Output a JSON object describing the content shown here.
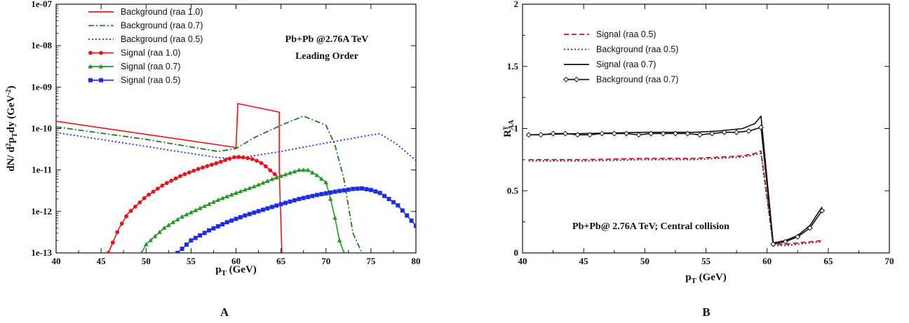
{
  "chart_data": [
    {
      "panel": "A",
      "type": "line",
      "xlabel": "p_T (GeV)",
      "ylabel": "dN/ d²p_T dy (GeV⁻²)",
      "xlim": [
        40,
        80
      ],
      "ylim": [
        1e-13,
        1e-07
      ],
      "yscale": "log",
      "xticks": [
        40,
        45,
        50,
        55,
        60,
        65,
        70,
        75,
        80
      ],
      "yticks": [
        1e-13,
        1e-12,
        1e-11,
        1e-10,
        1e-09,
        1e-08,
        1e-07
      ],
      "ytick_labels": [
        "1e-13",
        "1e-12",
        "1e-11",
        "1e-10",
        "1e-09",
        "1e-08",
        "1e-07"
      ],
      "annotation": [
        "Pb+Pb @2.76A TeV",
        "Leading Order"
      ],
      "legend_position": "top-left",
      "grid": false,
      "series": [
        {
          "name": "Background (raa 1.0)",
          "color": "#e8141c",
          "style": "solid",
          "marker": "none",
          "x": [
            40,
            60,
            60,
            60.2,
            64.8,
            64.8,
            65.1
          ],
          "y": [
            1.5e-10,
            3.5e-11,
            3.5e-11,
            4e-10,
            2.5e-10,
            1e-11,
            1e-13
          ]
        },
        {
          "name": "Background (raa 0.7)",
          "color": "#1f7a1f",
          "style": "dashdot",
          "marker": "none",
          "x": [
            40,
            50,
            55,
            58,
            60,
            62,
            65,
            67.5,
            70,
            71,
            72,
            73,
            74
          ],
          "y": [
            1.1e-10,
            5.5e-11,
            3.6e-11,
            2.8e-11,
            3.3e-11,
            6e-11,
            1.2e-10,
            2e-10,
            1.2e-10,
            4e-11,
            6e-12,
            3e-13,
            1e-13
          ]
        },
        {
          "name": "Background (raa 0.5)",
          "color": "#1c2de0",
          "style": "dotted",
          "marker": "none",
          "x": [
            40,
            50,
            55,
            58,
            60,
            65,
            70,
            75,
            76,
            78,
            80
          ],
          "y": [
            8e-11,
            3.7e-11,
            2.5e-11,
            2e-11,
            1.9e-11,
            2.8e-11,
            4.5e-11,
            7e-11,
            7.5e-11,
            4e-11,
            1.7e-11
          ]
        },
        {
          "name": "Signal (raa 1.0)",
          "color": "#e8141c",
          "style": "solid",
          "marker": "circle",
          "x": [
            45.8,
            47,
            48,
            50,
            52,
            54,
            56,
            58,
            59,
            60,
            61,
            62,
            63,
            64,
            64.6
          ],
          "y": [
            1e-13,
            4e-13,
            9e-13,
            2.3e-12,
            4.5e-12,
            7.5e-12,
            1.1e-11,
            1.5e-11,
            1.8e-11,
            2.1e-11,
            2e-11,
            1.8e-11,
            1.4e-11,
            9e-12,
            7e-12
          ]
        },
        {
          "name": "Signal (raa 0.7)",
          "color": "#1f9a1f",
          "style": "solid",
          "marker": "triangle",
          "x": [
            49.5,
            50,
            52,
            54,
            56,
            58,
            60,
            62,
            64,
            66,
            67,
            68,
            69,
            70,
            70.5,
            71,
            71.5,
            72
          ],
          "y": [
            1e-13,
            1.6e-13,
            4e-13,
            7.5e-13,
            1.2e-12,
            1.9e-12,
            2.8e-12,
            4e-12,
            6e-12,
            8.5e-12,
            1e-11,
            1e-11,
            7.5e-12,
            5e-12,
            2e-12,
            7e-13,
            2e-13,
            1e-13
          ]
        },
        {
          "name": "Signal (raa 0.5)",
          "color": "#1c2de0",
          "style": "solid",
          "marker": "square",
          "x": [
            53.5,
            55,
            57,
            59,
            61,
            63,
            65,
            67,
            69,
            71,
            73,
            74,
            75,
            76,
            77,
            78,
            79,
            80
          ],
          "y": [
            1e-13,
            2e-13,
            3.5e-13,
            5.5e-13,
            8e-13,
            1.1e-12,
            1.5e-12,
            2e-12,
            2.5e-12,
            3e-12,
            3.5e-12,
            3.6e-12,
            3.3e-12,
            2.8e-12,
            2e-12,
            1.4e-12,
            8e-13,
            4.5e-13
          ]
        }
      ]
    },
    {
      "panel": "B",
      "type": "line",
      "xlabel": "p_T (GeV)",
      "ylabel": "R^γ_AA",
      "xlim": [
        40,
        70
      ],
      "ylim": [
        0,
        2
      ],
      "xticks": [
        40,
        45,
        50,
        55,
        60,
        65,
        70
      ],
      "yticks": [
        0,
        0.5,
        1,
        1.5,
        2
      ],
      "ytick_labels": [
        "0",
        "0.5",
        "1",
        "1.5",
        "2"
      ],
      "annotation": [
        "Pb+Pb@ 2.76A TeV; Central collision"
      ],
      "legend_position": "top-left",
      "grid": false,
      "series": [
        {
          "name": "Signal (raa 0.5)",
          "color": "#d4141c",
          "style": "dashed",
          "marker": "none",
          "x": [
            40.5,
            45,
            50,
            54,
            56,
            58,
            59,
            59.5,
            60.5,
            61.5,
            62.5,
            63.5,
            64.5
          ],
          "y": [
            0.75,
            0.75,
            0.76,
            0.76,
            0.77,
            0.78,
            0.8,
            0.82,
            0.07,
            0.07,
            0.08,
            0.09,
            0.1
          ]
        },
        {
          "name": "Background (raa 0.5)",
          "color": "#333333",
          "style": "dotted",
          "marker": "none",
          "x": [
            40.5,
            45,
            50,
            54,
            56,
            58,
            59,
            59.5,
            60.5,
            61.5,
            62.5,
            63.5,
            64.5
          ],
          "y": [
            0.74,
            0.74,
            0.75,
            0.75,
            0.76,
            0.77,
            0.79,
            0.8,
            0.06,
            0.06,
            0.07,
            0.08,
            0.09
          ]
        },
        {
          "name": "Signal (raa 0.7)",
          "color": "#111111",
          "style": "solid",
          "marker": "none",
          "x": [
            40.5,
            45,
            50,
            54,
            56,
            58,
            59,
            59.5,
            60.5,
            61.5,
            62.5,
            63.5,
            64.5
          ],
          "y": [
            0.95,
            0.96,
            0.97,
            0.97,
            0.98,
            1.0,
            1.04,
            1.1,
            0.08,
            0.1,
            0.14,
            0.22,
            0.37
          ]
        },
        {
          "name": "Background (raa 0.7)",
          "color": "#111111",
          "style": "solid",
          "marker": "diamond",
          "x": [
            40.5,
            41.5,
            42.5,
            43.5,
            44.5,
            45.5,
            46.5,
            47.5,
            48.5,
            49.5,
            50.5,
            51.5,
            52.5,
            53.5,
            54.5,
            55.5,
            56.5,
            57.5,
            58.5,
            59.5,
            60.5,
            61.5,
            62.5,
            63.5,
            64.5
          ],
          "y": [
            0.95,
            0.95,
            0.96,
            0.96,
            0.95,
            0.95,
            0.96,
            0.96,
            0.96,
            0.95,
            0.96,
            0.96,
            0.96,
            0.96,
            0.95,
            0.96,
            0.97,
            0.97,
            0.98,
            1.01,
            0.07,
            0.09,
            0.13,
            0.2,
            0.34
          ]
        }
      ]
    }
  ],
  "panel_labels": [
    "A",
    "B"
  ]
}
